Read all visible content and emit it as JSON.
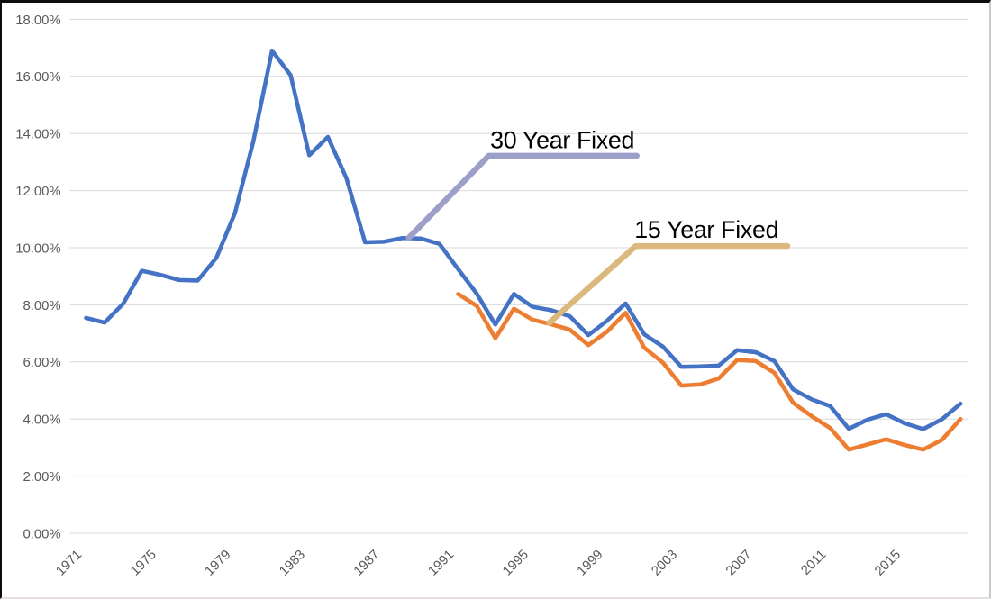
{
  "chart_data": {
    "type": "line",
    "title": "",
    "xlabel": "",
    "ylabel": "",
    "ylim": [
      0,
      18
    ],
    "grid": "horizontal",
    "legend_position": "none",
    "background_color": "#ffffff",
    "gridline_color": "#d9d9d9",
    "axis_label_color": "#595959",
    "x": [
      1971,
      1972,
      1973,
      1974,
      1975,
      1976,
      1977,
      1978,
      1979,
      1980,
      1981,
      1982,
      1983,
      1984,
      1985,
      1986,
      1987,
      1988,
      1989,
      1990,
      1991,
      1992,
      1993,
      1994,
      1995,
      1996,
      1997,
      1998,
      1999,
      2000,
      2001,
      2002,
      2003,
      2004,
      2005,
      2006,
      2007,
      2008,
      2009,
      2010,
      2011,
      2012,
      2013,
      2014,
      2015,
      2016,
      2017,
      2018
    ],
    "ytick_labels": [
      "0.00%",
      "2.00%",
      "4.00%",
      "6.00%",
      "8.00%",
      "10.00%",
      "12.00%",
      "14.00%",
      "16.00%",
      "18.00%"
    ],
    "xtick_labels": [
      "1971",
      "1975",
      "1979",
      "1983",
      "1987",
      "1991",
      "1995",
      "1999",
      "2003",
      "2007",
      "2011",
      "2015"
    ],
    "series": [
      {
        "name": "30 Year Fixed",
        "color": "#4472C4",
        "values": [
          7.54,
          7.38,
          8.04,
          9.19,
          9.05,
          8.87,
          8.85,
          9.64,
          11.2,
          13.74,
          16.9,
          16.04,
          13.24,
          13.88,
          12.43,
          10.19,
          10.21,
          10.34,
          10.32,
          10.13,
          9.25,
          8.39,
          7.31,
          8.38,
          7.93,
          7.81,
          7.6,
          6.94,
          7.44,
          8.05,
          6.97,
          6.54,
          5.83,
          5.84,
          5.87,
          6.41,
          6.34,
          6.03,
          5.04,
          4.69,
          4.45,
          3.66,
          3.98,
          4.17,
          3.85,
          3.65,
          3.99,
          4.54
        ]
      },
      {
        "name": "15 Year Fixed",
        "color": "#ED7D31",
        "values": [
          null,
          null,
          null,
          null,
          null,
          null,
          null,
          null,
          null,
          null,
          null,
          null,
          null,
          null,
          null,
          null,
          null,
          null,
          null,
          null,
          8.38,
          7.96,
          6.83,
          7.86,
          7.48,
          7.32,
          7.13,
          6.59,
          7.06,
          7.72,
          6.5,
          5.98,
          5.17,
          5.21,
          5.42,
          6.07,
          6.03,
          5.62,
          4.57,
          4.1,
          3.68,
          2.93,
          3.11,
          3.29,
          3.09,
          2.93,
          3.27,
          4.0
        ]
      }
    ]
  },
  "annotations": [
    {
      "label": "30 Year Fixed",
      "text_color": "#000000",
      "line_color": "#9CA0C9",
      "line_points_year_pct": [
        [
          1988.35,
          10.35
        ],
        [
          1992.65,
          13.22
        ],
        [
          2000.6,
          13.22
        ]
      ],
      "label_pos_year_pct": [
        1996.6,
        13.48
      ]
    },
    {
      "label": "15 Year Fixed",
      "text_color": "#000000",
      "line_color": "#DBB97E",
      "line_points_year_pct": [
        [
          1995.9,
          7.37
        ],
        [
          2000.55,
          10.06
        ],
        [
          2008.7,
          10.06
        ]
      ],
      "label_pos_year_pct": [
        2004.35,
        10.35
      ]
    }
  ]
}
